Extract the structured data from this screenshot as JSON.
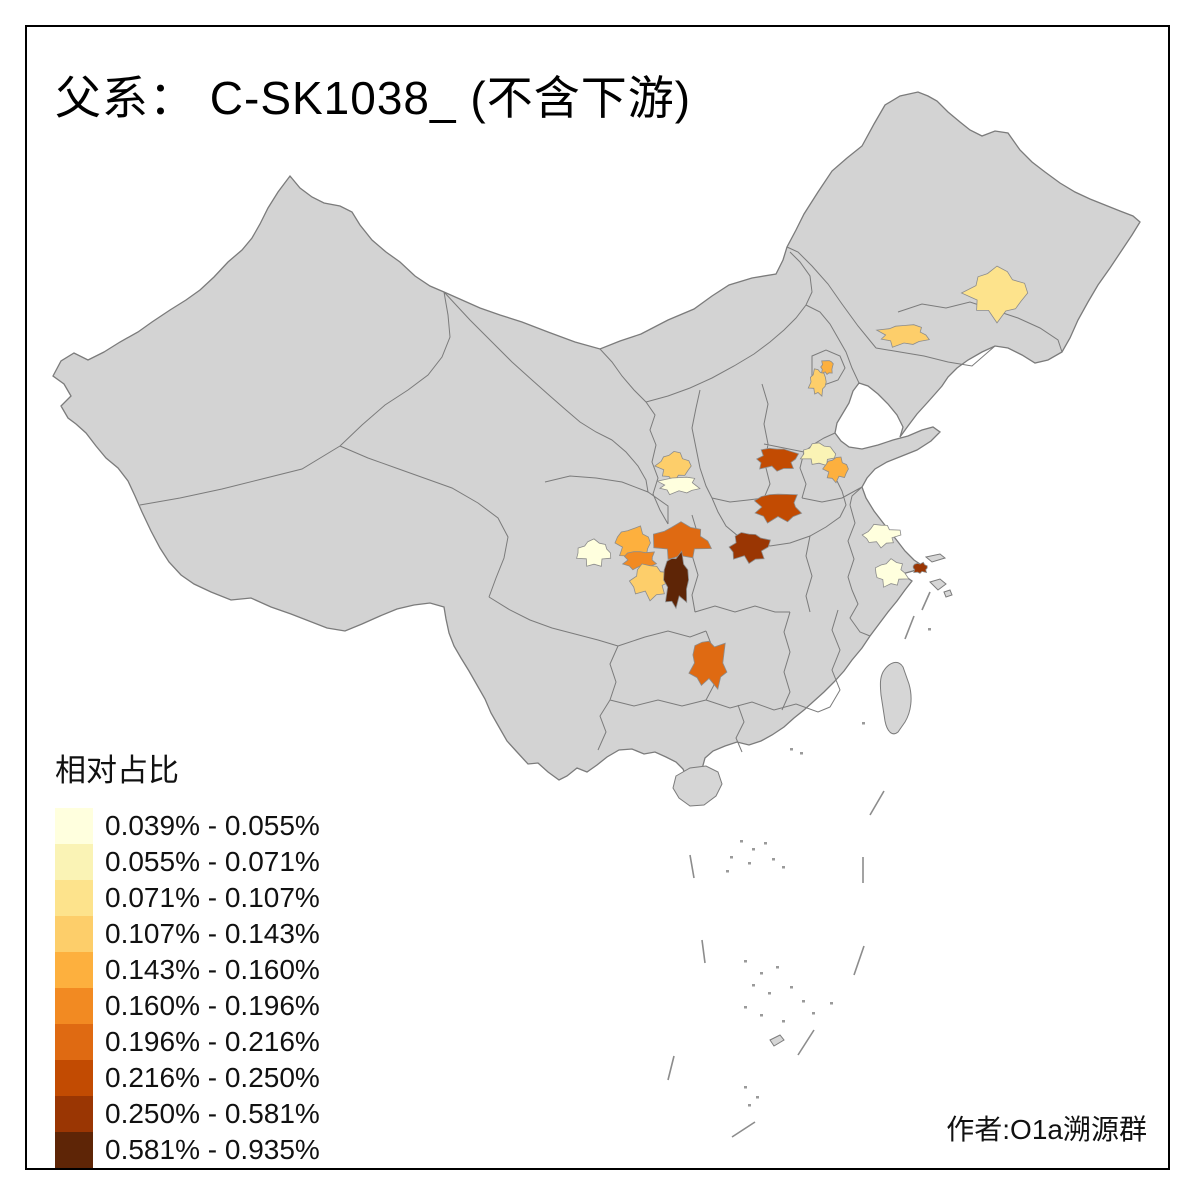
{
  "title": "父系： C-SK1038_ (不含下游)",
  "attribution": "作者:O1a溯源群",
  "legend": {
    "title": "相对占比",
    "classes": [
      {
        "label": "0.039% - 0.055%",
        "color": "#FFFFDE"
      },
      {
        "label": "0.055% - 0.071%",
        "color": "#FAF3B5"
      },
      {
        "label": "0.071% - 0.107%",
        "color": "#FDE38C"
      },
      {
        "label": "0.107% - 0.143%",
        "color": "#FDCE6A"
      },
      {
        "label": "0.143% - 0.160%",
        "color": "#FDB03E"
      },
      {
        "label": "0.160% - 0.196%",
        "color": "#F28A22"
      },
      {
        "label": "0.196% - 0.216%",
        "color": "#DF6A12"
      },
      {
        "label": "0.216% - 0.250%",
        "color": "#C24B02"
      },
      {
        "label": "0.250% - 0.581%",
        "color": "#9A3603"
      },
      {
        "label": "0.581% - 0.935%",
        "color": "#5E2506"
      }
    ]
  },
  "map": {
    "land_color": "#D3D3D3",
    "island_color": "#D6D6D6",
    "border_color": "#7B7B7B",
    "background_color": "#FFFFFF",
    "regions": [
      {
        "id": "heilongjiang-harbin",
        "class": 3
      },
      {
        "id": "liaoning-west",
        "class": 4
      },
      {
        "id": "beijing",
        "class": 5
      },
      {
        "id": "hebei-central",
        "class": 4
      },
      {
        "id": "shaanxi-guanzhong-n",
        "class": 4
      },
      {
        "id": "shaanxi-guanzhong-s",
        "class": 1
      },
      {
        "id": "henan-north",
        "class": 8
      },
      {
        "id": "shandong-west",
        "class": 2
      },
      {
        "id": "shandong-central",
        "class": 5
      },
      {
        "id": "henan-southwest",
        "class": 8
      },
      {
        "id": "hubei-north",
        "class": 9
      },
      {
        "id": "sichuan-west",
        "class": 1
      },
      {
        "id": "sichuan-north",
        "class": 5
      },
      {
        "id": "sichuan-central",
        "class": 6
      },
      {
        "id": "sichuan-south",
        "class": 4
      },
      {
        "id": "chongqing-west",
        "class": 7
      },
      {
        "id": "chongqing-southeast",
        "class": 10
      },
      {
        "id": "hunan-central",
        "class": 7
      },
      {
        "id": "jiangsu-south",
        "class": 1
      },
      {
        "id": "zhejiang-north",
        "class": 1
      },
      {
        "id": "shanghai",
        "class": 9
      }
    ]
  }
}
